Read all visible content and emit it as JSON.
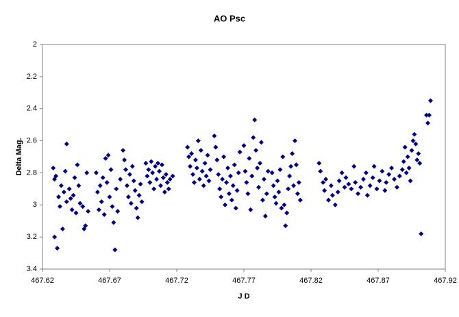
{
  "chart_data": {
    "type": "scatter",
    "title": "AO Psc",
    "x_label": "J D",
    "y_label": "Delta Mag.",
    "color": "#000080",
    "y_reversed": true,
    "grid": false,
    "xlim": [
      467.62,
      467.92
    ],
    "xticks": [
      467.62,
      467.67,
      467.72,
      467.77,
      467.82,
      467.87,
      467.92
    ],
    "ylim": [
      2,
      3.4
    ],
    "yticks": [
      2,
      2.2,
      2.4,
      2.6,
      2.8,
      3,
      3.2,
      3.4
    ],
    "x": [
      467.628,
      467.629,
      467.629,
      467.631,
      467.63,
      467.632,
      467.633,
      467.634,
      467.635,
      467.636,
      467.637,
      467.638,
      467.638,
      467.64,
      467.641,
      467.642,
      467.643,
      467.644,
      467.645,
      467.646,
      467.647,
      467.648,
      467.65,
      467.651,
      467.652,
      467.653,
      467.654,
      467.66,
      467.661,
      467.662,
      467.663,
      467.664,
      467.665,
      467.666,
      467.667,
      467.668,
      467.669,
      467.67,
      467.671,
      467.672,
      467.673,
      467.674,
      467.675,
      467.676,
      467.678,
      467.68,
      467.681,
      467.682,
      467.683,
      467.684,
      467.685,
      467.686,
      467.687,
      467.688,
      467.689,
      467.69,
      467.691,
      467.692,
      467.693,
      467.694,
      467.697,
      467.698,
      467.699,
      467.7,
      467.701,
      467.702,
      467.703,
      467.704,
      467.705,
      467.706,
      467.707,
      467.708,
      467.709,
      467.71,
      467.711,
      467.712,
      467.713,
      467.714,
      467.715,
      467.717,
      467.728,
      467.729,
      467.73,
      467.731,
      467.732,
      467.733,
      467.734,
      467.735,
      467.736,
      467.737,
      467.738,
      467.739,
      467.74,
      467.741,
      467.742,
      467.743,
      467.744,
      467.745,
      467.748,
      467.749,
      467.75,
      467.751,
      467.752,
      467.753,
      467.754,
      467.755,
      467.756,
      467.757,
      467.758,
      467.759,
      467.76,
      467.761,
      467.762,
      467.763,
      467.764,
      467.765,
      467.766,
      467.767,
      467.77,
      467.771,
      467.772,
      467.773,
      467.774,
      467.775,
      467.776,
      467.777,
      467.778,
      467.779,
      467.78,
      467.781,
      467.782,
      467.783,
      467.784,
      467.785,
      467.786,
      467.787,
      467.788,
      467.791,
      467.792,
      467.793,
      467.794,
      467.795,
      467.796,
      467.797,
      467.798,
      467.799,
      467.8,
      467.801,
      467.802,
      467.803,
      467.804,
      467.805,
      467.806,
      467.807,
      467.808,
      467.809,
      467.81,
      467.811,
      467.812,
      467.826,
      467.827,
      467.829,
      467.83,
      467.831,
      467.833,
      467.835,
      467.836,
      467.838,
      467.84,
      467.841,
      467.843,
      467.845,
      467.846,
      467.848,
      467.85,
      467.852,
      467.853,
      467.855,
      467.857,
      467.859,
      467.861,
      467.862,
      467.864,
      467.866,
      467.867,
      467.869,
      467.871,
      467.873,
      467.875,
      467.876,
      467.878,
      467.88,
      467.882,
      467.884,
      467.886,
      467.888,
      467.889,
      467.89,
      467.891,
      467.892,
      467.893,
      467.894,
      467.895,
      467.896,
      467.897,
      467.898,
      467.899,
      467.9,
      467.901,
      467.902,
      467.906,
      467.907,
      467.908,
      467.909
    ],
    "values": [
      2.77,
      2.84,
      3.2,
      3.27,
      2.82,
      2.95,
      3.01,
      2.88,
      3.15,
      2.92,
      2.79,
      2.62,
      2.98,
      2.9,
      2.96,
      3.03,
      2.94,
      2.83,
      3.05,
      2.75,
      2.88,
      2.99,
      3.01,
      3.15,
      3.13,
      2.8,
      3.04,
      2.8,
      2.92,
      3.03,
      2.88,
      2.98,
      2.83,
      3.06,
      2.71,
      2.86,
      2.69,
      2.95,
      2.78,
      3.01,
      3.11,
      3.28,
      2.9,
      3.04,
      2.84,
      2.66,
      2.72,
      2.78,
      2.88,
      2.95,
      2.81,
      2.99,
      2.76,
      2.85,
      2.91,
      3.02,
      3.08,
      2.94,
      2.87,
      2.98,
      2.74,
      2.82,
      2.78,
      2.86,
      2.73,
      2.8,
      2.9,
      2.76,
      2.84,
      2.74,
      2.79,
      2.88,
      2.75,
      2.83,
      2.92,
      2.81,
      2.86,
      2.9,
      2.84,
      2.82,
      2.64,
      2.7,
      2.76,
      2.68,
      2.81,
      2.86,
      2.72,
      2.77,
      2.6,
      2.84,
      2.66,
      2.79,
      2.88,
      2.74,
      2.82,
      2.69,
      2.85,
      2.78,
      2.57,
      2.64,
      2.72,
      2.81,
      2.9,
      2.95,
      2.84,
      2.7,
      3.0,
      2.86,
      2.77,
      2.93,
      2.82,
      2.97,
      2.88,
      2.75,
      3.02,
      2.91,
      2.8,
      2.67,
      2.63,
      2.79,
      2.86,
      2.93,
      2.71,
      3.03,
      2.82,
      2.58,
      2.47,
      2.66,
      2.77,
      2.89,
      2.74,
      2.61,
      2.97,
      2.84,
      3.07,
      2.93,
      2.79,
      2.8,
      2.88,
      2.95,
      2.99,
      2.85,
      2.92,
      2.78,
      3.02,
      2.7,
      3.0,
      3.13,
      3.05,
      2.9,
      2.82,
      2.76,
      2.68,
      2.88,
      2.6,
      2.75,
      2.93,
      2.86,
      2.97,
      2.74,
      2.79,
      2.86,
      2.91,
      2.84,
      2.97,
      2.88,
      2.94,
      3.0,
      2.92,
      2.85,
      2.8,
      2.89,
      2.83,
      2.87,
      2.9,
      2.76,
      2.86,
      2.93,
      2.89,
      2.84,
      2.8,
      2.94,
      2.88,
      2.83,
      2.76,
      2.9,
      2.85,
      2.79,
      2.91,
      2.86,
      2.81,
      2.77,
      2.84,
      2.89,
      2.82,
      2.78,
      2.73,
      2.64,
      2.8,
      2.7,
      2.77,
      2.85,
      2.66,
      2.6,
      2.56,
      2.62,
      2.72,
      2.68,
      2.74,
      3.18,
      2.44,
      2.49,
      2.44,
      2.35
    ]
  }
}
